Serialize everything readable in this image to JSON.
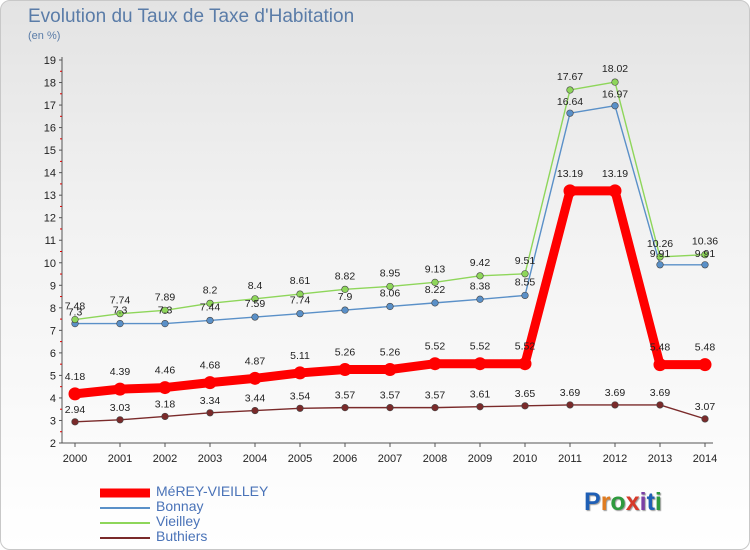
{
  "title": "Evolution du Taux de Taxe d'Habitation",
  "subtitle": "(en %)",
  "logo": {
    "letters": [
      "P",
      "r",
      "o",
      "x",
      "i",
      "t",
      "i"
    ],
    "colors": [
      "#1f5fb5",
      "#e07b1f",
      "#2e9a3e",
      "#d63a2a",
      "#7a3fa5",
      "#1f5fb5",
      "#2e9a3e"
    ]
  },
  "chart_data": {
    "type": "line",
    "x": [
      "2000",
      "2001",
      "2002",
      "2003",
      "2004",
      "2005",
      "2006",
      "2007",
      "2008",
      "2009",
      "2010",
      "2011",
      "2012",
      "2013",
      "2014"
    ],
    "ylim": [
      2,
      19
    ],
    "yticks": [
      "2",
      "3",
      "4",
      "5",
      "6",
      "7",
      "8",
      "9",
      "10",
      "11",
      "12",
      "13",
      "14",
      "15",
      "16",
      "17",
      "18",
      "19"
    ],
    "grid": false,
    "legend_position": "bottom-left",
    "series": [
      {
        "name": "MéREY-VIEILLEY",
        "color": "#ff0000",
        "values": [
          4.18,
          4.39,
          4.46,
          4.68,
          4.87,
          5.11,
          5.26,
          5.26,
          5.52,
          5.52,
          5.52,
          13.19,
          13.19,
          5.48,
          5.48
        ],
        "labels": [
          "4.18",
          "4.39",
          "4.46",
          "4.68",
          "4.87",
          "5.11",
          "5.26",
          "5.26",
          "5.52",
          "5.52",
          "5.52",
          "13.19",
          "13.19",
          "5.48",
          "5.48"
        ]
      },
      {
        "name": "Bonnay",
        "color": "#5a90c8",
        "values": [
          7.3,
          7.3,
          7.3,
          7.44,
          7.59,
          7.74,
          7.9,
          8.06,
          8.22,
          8.38,
          8.55,
          16.64,
          16.97,
          9.91,
          9.91
        ],
        "labels": [
          "7.3",
          "7.3",
          "7.3",
          "7.44",
          "7.59",
          "7.74",
          "7.9",
          "8.06",
          "8.22",
          "8.38",
          "8.55",
          "16.64",
          "16.97",
          "9.91",
          "9.91"
        ]
      },
      {
        "name": "Vieilley",
        "color": "#8ed65a",
        "values": [
          7.48,
          7.74,
          7.89,
          8.2,
          8.4,
          8.61,
          8.82,
          8.95,
          9.13,
          9.42,
          9.51,
          17.67,
          18.02,
          10.26,
          10.36
        ],
        "labels": [
          "7.48",
          "7.74",
          "7.89",
          "8.2",
          "8.4",
          "8.61",
          "8.82",
          "8.95",
          "9.13",
          "9.42",
          "9.51",
          "17.67",
          "18.02",
          "10.26",
          "10.36"
        ]
      },
      {
        "name": "Buthiers",
        "color": "#7a2a2a",
        "values": [
          2.94,
          3.03,
          3.18,
          3.34,
          3.44,
          3.54,
          3.57,
          3.57,
          3.57,
          3.61,
          3.65,
          3.69,
          3.69,
          3.69,
          3.07
        ],
        "labels": [
          "2.94",
          "3.03",
          "3.18",
          "3.34",
          "3.44",
          "3.54",
          "3.57",
          "3.57",
          "3.57",
          "3.61",
          "3.65",
          "3.69",
          "3.69",
          "3.69",
          "3.07"
        ]
      }
    ]
  }
}
